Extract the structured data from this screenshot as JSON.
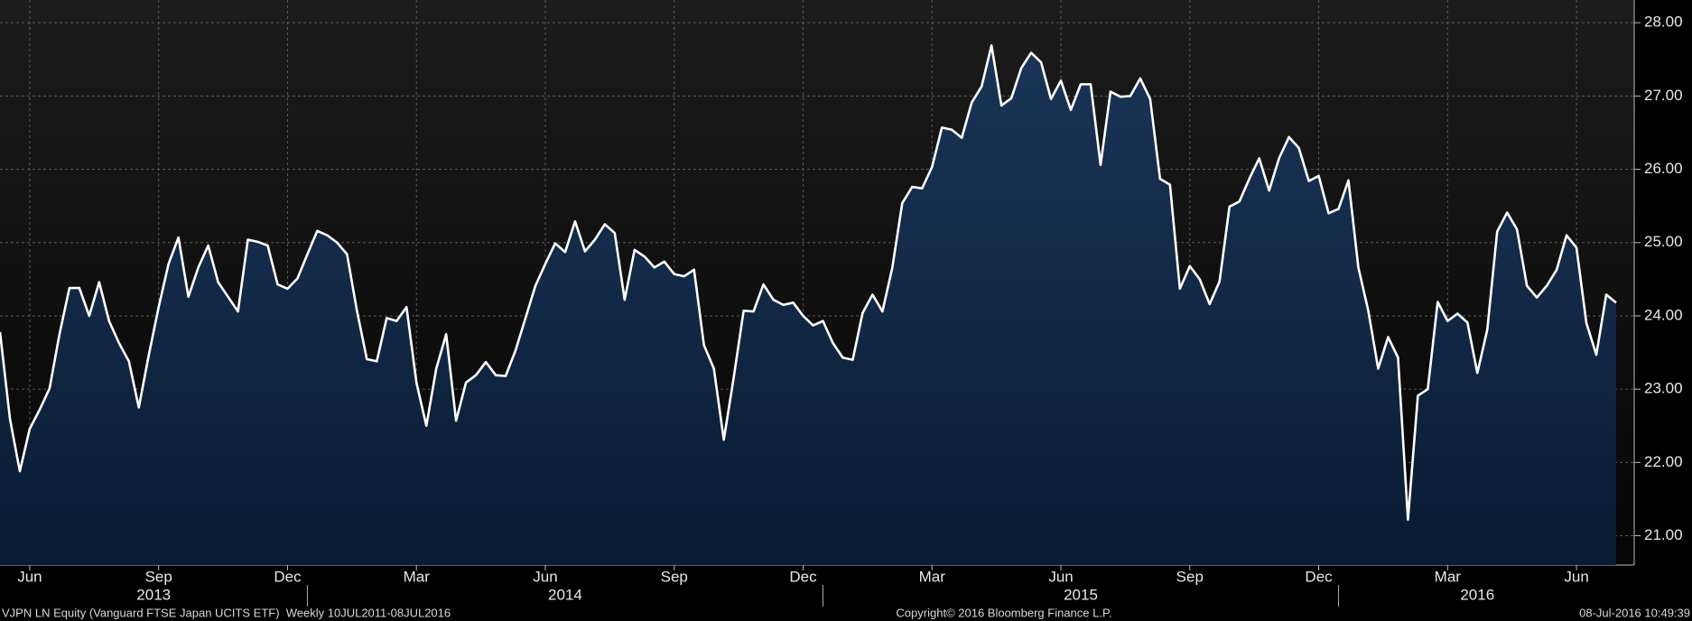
{
  "chart_data": {
    "type": "area",
    "color": "#ffffff",
    "area_color": "#1a3558",
    "categories": [
      null,
      null,
      null,
      "Jun",
      null,
      null,
      null,
      null,
      null,
      null,
      null,
      null,
      null,
      null,
      null,
      null,
      "Sep",
      null,
      null,
      null,
      null,
      null,
      null,
      null,
      null,
      null,
      null,
      null,
      null,
      "Dec",
      null,
      null,
      null,
      null,
      null,
      null,
      null,
      null,
      null,
      null,
      null,
      null,
      "Mar",
      null,
      null,
      null,
      null,
      null,
      null,
      null,
      null,
      null,
      null,
      null,
      null,
      "Jun",
      null,
      null,
      null,
      null,
      null,
      null,
      null,
      null,
      null,
      null,
      null,
      null,
      "Sep",
      null,
      null,
      null,
      null,
      null,
      null,
      null,
      null,
      null,
      null,
      null,
      null,
      "Dec",
      null,
      null,
      null,
      null,
      null,
      null,
      null,
      null,
      null,
      null,
      null,
      null,
      "Mar",
      null,
      null,
      null,
      null,
      null,
      null,
      null,
      null,
      null,
      null,
      null,
      null,
      "Jun",
      null,
      null,
      null,
      null,
      null,
      null,
      null,
      null,
      null,
      null,
      null,
      null,
      "Sep",
      null,
      null,
      null,
      null,
      null,
      null,
      null,
      null,
      null,
      null,
      null,
      null,
      "Dec",
      null,
      null,
      null,
      null,
      null,
      null,
      null,
      null,
      null,
      null,
      null,
      null,
      "Mar",
      null,
      null,
      null,
      null,
      null,
      null,
      null,
      null,
      null,
      null,
      null,
      null,
      "Jun",
      null,
      null,
      null,
      null
    ],
    "values": [
      23.78,
      22.6,
      21.88,
      22.46,
      22.72,
      23.01,
      23.75,
      24.38,
      24.38,
      24.0,
      24.46,
      23.93,
      23.63,
      23.38,
      22.75,
      23.46,
      24.12,
      24.71,
      25.07,
      24.26,
      24.66,
      24.96,
      24.46,
      24.26,
      24.06,
      25.04,
      25.01,
      24.96,
      24.43,
      24.37,
      24.51,
      24.84,
      25.16,
      25.1,
      25.0,
      24.84,
      24.07,
      23.41,
      23.38,
      23.97,
      23.93,
      24.12,
      23.09,
      22.5,
      23.28,
      23.75,
      22.57,
      23.09,
      23.19,
      23.37,
      23.19,
      23.18,
      23.53,
      23.97,
      24.41,
      24.71,
      24.99,
      24.87,
      25.29,
      24.88,
      25.04,
      25.25,
      25.13,
      24.22,
      24.9,
      24.81,
      24.66,
      24.74,
      24.57,
      24.54,
      24.63,
      23.6,
      23.28,
      22.31,
      23.16,
      24.07,
      24.06,
      24.43,
      24.22,
      24.15,
      24.18,
      24.0,
      23.87,
      23.93,
      23.63,
      23.43,
      23.4,
      24.04,
      24.29,
      24.06,
      24.66,
      25.54,
      25.76,
      25.74,
      26.03,
      26.57,
      26.54,
      26.43,
      26.91,
      27.13,
      27.69,
      26.87,
      26.97,
      27.38,
      27.59,
      27.46,
      26.96,
      27.21,
      26.81,
      27.16,
      27.16,
      26.06,
      27.06,
      26.99,
      27.0,
      27.24,
      26.96,
      25.87,
      25.79,
      24.37,
      24.68,
      24.5,
      24.16,
      24.47,
      25.49,
      25.56,
      25.87,
      26.15,
      25.71,
      26.15,
      26.44,
      26.29,
      25.84,
      25.91,
      25.4,
      25.46,
      25.85,
      24.66,
      24.07,
      23.28,
      23.71,
      23.43,
      21.22,
      22.91,
      23.0,
      24.19,
      23.93,
      24.03,
      23.91,
      23.22,
      23.81,
      25.15,
      25.41,
      25.18,
      24.41,
      24.25,
      24.41,
      24.63,
      25.1,
      24.93,
      23.9,
      23.47,
      24.29,
      24.18
    ],
    "years": [
      {
        "label": "2013",
        "start": 0
      },
      {
        "label": "2014",
        "start": 31
      },
      {
        "label": "2015",
        "start": 83
      },
      {
        "label": "2016",
        "start": 135
      }
    ],
    "ylim": [
      20.6,
      28.31
    ],
    "yticks": [
      {
        "value": 21,
        "label": "21.00"
      },
      {
        "value": 22,
        "label": "22.00"
      },
      {
        "value": 23,
        "label": "23.00"
      },
      {
        "value": 24,
        "label": "24.00"
      },
      {
        "value": 25,
        "label": "25.00"
      },
      {
        "value": 26,
        "label": "26.00"
      },
      {
        "value": 27,
        "label": "27.00"
      },
      {
        "value": 28,
        "label": "28.00"
      }
    ],
    "grid": true,
    "footer_left": "VJPN LN Equity (Vanguard FTSE Japan UCITS ETF)  Weekly 10JUL2011-08JUL2016",
    "footer_center": "Copyright© 2016 Bloomberg Finance L.P.",
    "footer_right": "08-Jul-2016 10:49:39"
  }
}
